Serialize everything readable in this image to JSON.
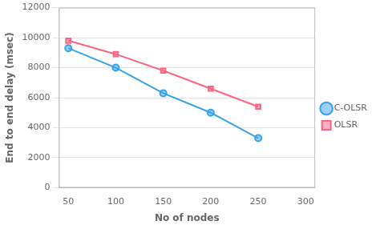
{
  "chart_data": {
    "type": "line",
    "x": [
      50,
      100,
      150,
      200,
      250
    ],
    "series": [
      {
        "name": "C-OLSR",
        "values": [
          9300,
          8000,
          6300,
          5000,
          3300
        ],
        "marker": "circle"
      },
      {
        "name": "OLSR",
        "values": [
          9800,
          8900,
          7800,
          6600,
          5400
        ],
        "marker": "square"
      }
    ],
    "xlabel": "No of nodes",
    "ylabel": "End to end delay (msec)",
    "xlim": [
      40,
      310
    ],
    "ylim": [
      0,
      12000
    ],
    "xticks": [
      50,
      100,
      150,
      200,
      250,
      300
    ],
    "yticks": [
      0,
      2000,
      4000,
      6000,
      8000,
      10000,
      12000
    ],
    "grid": "y",
    "legend": "right"
  }
}
